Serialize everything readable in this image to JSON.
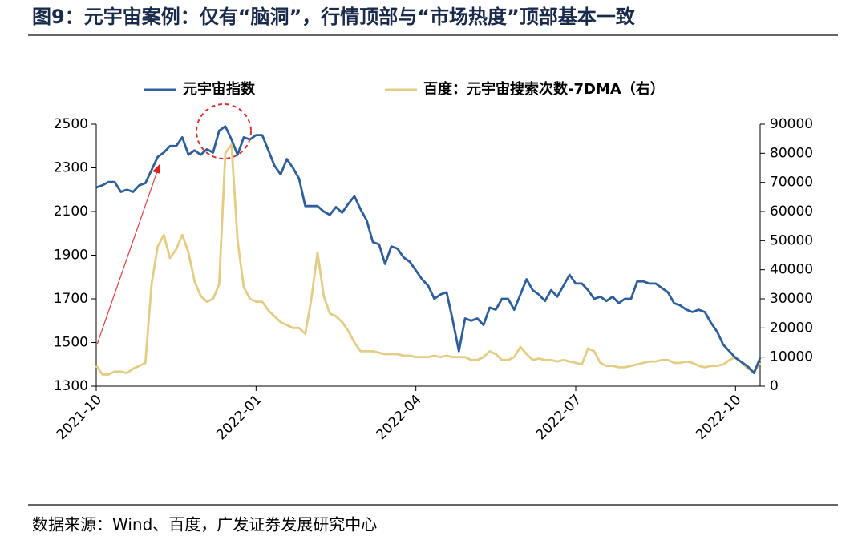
{
  "chart_data": {
    "type": "line",
    "title": "图9：元宇宙案例：仅有“脑洞”，行情顶部与“市场热度”顶部基本一致",
    "source": "数据来源：Wind、百度，广发证券发展研究中心",
    "categories": [
      "2021-10",
      null,
      null,
      null,
      null,
      null,
      null,
      null,
      null,
      null,
      null,
      null,
      null,
      null,
      null,
      null,
      null,
      null,
      null,
      null,
      null,
      null,
      null,
      null,
      null,
      null,
      "2022-01",
      null,
      null,
      null,
      null,
      null,
      null,
      null,
      null,
      null,
      null,
      null,
      null,
      null,
      null,
      null,
      null,
      null,
      null,
      null,
      null,
      null,
      null,
      null,
      null,
      null,
      "2022-04",
      null,
      null,
      null,
      null,
      null,
      null,
      null,
      null,
      null,
      null,
      null,
      null,
      null,
      null,
      null,
      null,
      null,
      null,
      null,
      null,
      null,
      null,
      null,
      null,
      null,
      "2022-07",
      null,
      null,
      null,
      null,
      null,
      null,
      null,
      null,
      null,
      null,
      null,
      null,
      null,
      null,
      null,
      null,
      null,
      null,
      null,
      null,
      null,
      null,
      null,
      null,
      null,
      "2022-10",
      null,
      null,
      null,
      null
    ],
    "series": [
      {
        "name": "元宇宙指数",
        "color": "#2e5f9a",
        "axis": "y",
        "values": [
          2210,
          2220,
          2235,
          2235,
          2190,
          2200,
          2190,
          2220,
          2230,
          2290,
          2350,
          2370,
          2400,
          2400,
          2440,
          2360,
          2380,
          2360,
          2385,
          2370,
          2470,
          2490,
          2430,
          2360,
          2440,
          2430,
          2450,
          2450,
          2380,
          2310,
          2270,
          2340,
          2300,
          2250,
          2125,
          2125,
          2125,
          2100,
          2085,
          2120,
          2095,
          2135,
          2170,
          2110,
          2060,
          1960,
          1950,
          1860,
          1940,
          1930,
          1890,
          1870,
          1830,
          1790,
          1760,
          1700,
          1720,
          1730,
          1600,
          1460,
          1610,
          1600,
          1610,
          1580,
          1660,
          1650,
          1700,
          1700,
          1650,
          1720,
          1790,
          1740,
          1720,
          1690,
          1740,
          1710,
          1760,
          1810,
          1770,
          1770,
          1740,
          1700,
          1710,
          1690,
          1710,
          1680,
          1700,
          1700,
          1780,
          1780,
          1770,
          1770,
          1750,
          1730,
          1680,
          1670,
          1650,
          1640,
          1650,
          1640,
          1590,
          1550,
          1490,
          1460,
          1430,
          1410,
          1390,
          1360,
          1430
        ]
      },
      {
        "name": "百度：元宇宙搜索次数-7DMA（右）",
        "color": "#e3cd84",
        "axis": "y2",
        "values": [
          7000,
          4000,
          4000,
          5000,
          5000,
          4500,
          6000,
          7000,
          8000,
          35000,
          48000,
          52000,
          44000,
          47000,
          52000,
          46000,
          36000,
          31000,
          29000,
          30000,
          35000,
          80000,
          83000,
          50000,
          34000,
          30000,
          29000,
          29000,
          26000,
          24000,
          22000,
          21000,
          20000,
          20000,
          18000,
          30000,
          46000,
          31000,
          25000,
          24000,
          22000,
          19000,
          15000,
          12000,
          12000,
          12000,
          11500,
          11000,
          11000,
          11000,
          10500,
          10500,
          10000,
          10000,
          10000,
          10500,
          10000,
          10500,
          10000,
          10000,
          10000,
          9000,
          9000,
          10000,
          12000,
          11000,
          9000,
          9000,
          10000,
          13500,
          11000,
          9000,
          9500,
          9000,
          9000,
          8500,
          9000,
          8500,
          8000,
          7500,
          13000,
          12000,
          8000,
          7000,
          7000,
          6500,
          6500,
          7000,
          7500,
          8000,
          8500,
          8500,
          9000,
          9000,
          8000,
          8000,
          8500,
          8000,
          7000,
          6500,
          7000,
          7000,
          7500,
          9000,
          10000,
          8000,
          6000,
          5000,
          8000
        ]
      }
    ],
    "ylim": [
      1300,
      2500
    ],
    "yticks": [
      1300,
      1500,
      1700,
      1900,
      2100,
      2300,
      2500
    ],
    "y2lim": [
      0,
      90000
    ],
    "y2ticks": [
      0,
      10000,
      20000,
      30000,
      40000,
      50000,
      60000,
      70000,
      80000,
      90000
    ],
    "legend": "top"
  }
}
